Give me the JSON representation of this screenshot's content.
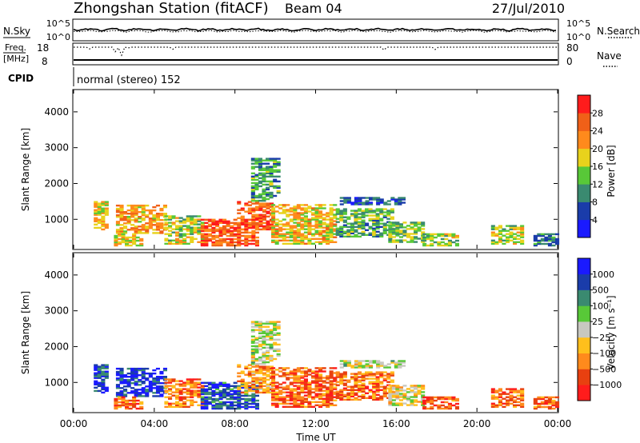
{
  "header": {
    "station": "Zhongshan Station (fitACF)",
    "beam": "Beam 04",
    "date": "27/Jul/2010"
  },
  "panels": {
    "nsky_label": "N.Sky",
    "nsearch_label": "N.Search",
    "nsky_ticks": [
      "10^5",
      "10^0"
    ],
    "nsearch_ticks": [
      "10^5",
      "10^0"
    ],
    "freq_label_1": "Freq.",
    "freq_label_2": "[MHz]",
    "freq_ticks": [
      "18",
      "8"
    ],
    "nave_label": "Nave",
    "nave_ticks": [
      "80",
      "0"
    ],
    "cpid_label": "CPID",
    "cpid_value": "normal (stereo) 152"
  },
  "colors": {
    "power_scale": [
      "#1a1aff",
      "#1a3caa",
      "#3a8a70",
      "#58c838",
      "#e8d21c",
      "#ff8a1c",
      "#f06018",
      "#ff1c1c"
    ],
    "velocity_scale": [
      "#ff1c1c",
      "#e84010",
      "#ff8a1c",
      "#ffbf1c",
      "#c8c8c0",
      "#58c838",
      "#3a8a70",
      "#1a3caa",
      "#1a1aff"
    ]
  },
  "chart_data": [
    {
      "type": "heatmap",
      "name": "power-panel",
      "ylabel": "Slant Range [km]",
      "ylim": [
        180,
        4600
      ],
      "yticks": [
        "4000",
        "3000",
        "2000",
        "1000"
      ],
      "ytick_values": [
        4000,
        3000,
        2000,
        1000
      ],
      "colorbar_label": "Power [dB]",
      "colorbar_ticks": [
        "28",
        "24",
        "20",
        "16",
        "12",
        "8",
        "4"
      ],
      "colorbar_range": [
        0,
        32
      ],
      "echo_regions": [
        {
          "t": [
            1.0,
            1.6
          ],
          "r": [
            700,
            1500
          ],
          "level": 0.6
        },
        {
          "t": [
            2.1,
            4.5
          ],
          "r": [
            600,
            1400
          ],
          "level": 0.65
        },
        {
          "t": [
            2.0,
            3.4
          ],
          "r": [
            250,
            600
          ],
          "level": 0.55
        },
        {
          "t": [
            4.5,
            6.3
          ],
          "r": [
            300,
            1100
          ],
          "level": 0.5
        },
        {
          "t": [
            6.3,
            9.1
          ],
          "r": [
            250,
            1000
          ],
          "level": 0.8
        },
        {
          "t": [
            8.1,
            9.8
          ],
          "r": [
            700,
            1500
          ],
          "level": 0.8
        },
        {
          "t": [
            8.8,
            10.2
          ],
          "r": [
            1500,
            2700
          ],
          "level": 0.35
        },
        {
          "t": [
            9.8,
            13.0
          ],
          "r": [
            300,
            1400
          ],
          "level": 0.6
        },
        {
          "t": [
            13.0,
            15.8
          ],
          "r": [
            500,
            1300
          ],
          "level": 0.4
        },
        {
          "t": [
            13.2,
            16.3
          ],
          "r": [
            1400,
            1600
          ],
          "level": 0.2
        },
        {
          "t": [
            15.6,
            17.3
          ],
          "r": [
            350,
            900
          ],
          "level": 0.45
        },
        {
          "t": [
            17.3,
            19.0
          ],
          "r": [
            250,
            600
          ],
          "level": 0.5
        },
        {
          "t": [
            20.7,
            22.3
          ],
          "r": [
            300,
            800
          ],
          "level": 0.5
        },
        {
          "t": [
            22.8,
            24.0
          ],
          "r": [
            250,
            600
          ],
          "level": 0.3
        }
      ]
    },
    {
      "type": "heatmap",
      "name": "velocity-panel",
      "ylabel": "Slant Range [km]",
      "xlabel": "Time UT",
      "ylim": [
        180,
        4600
      ],
      "yticks": [
        "4000",
        "3000",
        "2000",
        "1000"
      ],
      "ytick_values": [
        4000,
        3000,
        2000,
        1000
      ],
      "xticks": [
        "00:00",
        "04:00",
        "08:00",
        "12:00",
        "16:00",
        "20:00",
        "00:00"
      ],
      "xtick_hours": [
        0,
        4,
        8,
        12,
        16,
        20,
        24
      ],
      "colorbar_label": "Velocity [m s⁻¹]",
      "colorbar_ticks": [
        "1000",
        "500",
        "100",
        "25",
        "−25",
        "−100",
        "−500",
        "−1000"
      ],
      "echo_regions": [
        {
          "t": [
            1.0,
            1.6
          ],
          "r": [
            700,
            1500
          ],
          "level": 0.85
        },
        {
          "t": [
            2.1,
            4.5
          ],
          "r": [
            600,
            1400
          ],
          "level": 0.88
        },
        {
          "t": [
            2.0,
            3.4
          ],
          "r": [
            250,
            600
          ],
          "level": 0.2
        },
        {
          "t": [
            4.5,
            6.3
          ],
          "r": [
            300,
            1100
          ],
          "level": 0.25
        },
        {
          "t": [
            6.3,
            9.1
          ],
          "r": [
            250,
            1000
          ],
          "level": 0.82
        },
        {
          "t": [
            8.1,
            9.8
          ],
          "r": [
            700,
            1500
          ],
          "level": 0.3
        },
        {
          "t": [
            8.8,
            10.2
          ],
          "r": [
            1500,
            2700
          ],
          "level": 0.5
        },
        {
          "t": [
            9.8,
            13.0
          ],
          "r": [
            300,
            1400
          ],
          "level": 0.2
        },
        {
          "t": [
            13.0,
            15.8
          ],
          "r": [
            500,
            1300
          ],
          "level": 0.25
        },
        {
          "t": [
            13.2,
            16.3
          ],
          "r": [
            1400,
            1600
          ],
          "level": 0.5
        },
        {
          "t": [
            15.6,
            17.3
          ],
          "r": [
            350,
            900
          ],
          "level": 0.45
        },
        {
          "t": [
            17.3,
            19.0
          ],
          "r": [
            250,
            600
          ],
          "level": 0.2
        },
        {
          "t": [
            20.7,
            22.3
          ],
          "r": [
            300,
            800
          ],
          "level": 0.22
        },
        {
          "t": [
            22.8,
            24.0
          ],
          "r": [
            250,
            600
          ],
          "level": 0.25
        }
      ]
    }
  ]
}
